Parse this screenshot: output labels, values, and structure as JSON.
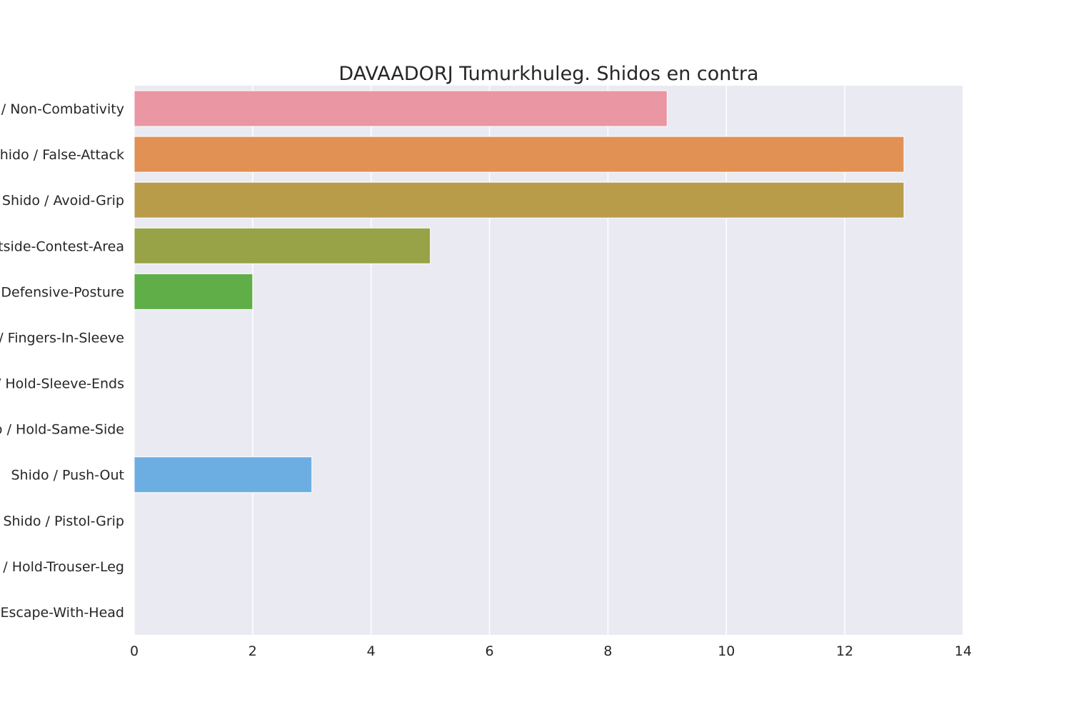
{
  "chart_data": {
    "type": "bar",
    "orientation": "horizontal",
    "title": "DAVAADORJ Tumurkhuleg. Shidos en contra",
    "xlabel": "",
    "ylabel": "",
    "xlim": [
      0,
      14
    ],
    "xticks": [
      "0",
      "2",
      "4",
      "6",
      "8",
      "10",
      "12",
      "14"
    ],
    "grid": true,
    "categories": [
      "Shido / Non-Combativity",
      "Shido / False-Attack",
      "Shido / Avoid-Grip",
      "Shido / Outside-Contest-Area",
      "Shido / Defensive-Posture",
      "Shido / Fingers-In-Sleeve",
      "Shido / Hold-Sleeve-Ends",
      "Shido / Hold-Same-Side",
      "Shido / Push-Out",
      "Shido / Pistol-Grip",
      "Shido / Hold-Trouser-Leg",
      "Shido / Escape-With-Head"
    ],
    "values": [
      9,
      13,
      13,
      5,
      2,
      0,
      0,
      0,
      3,
      0,
      0,
      0
    ],
    "colors": [
      "#ea96a3",
      "#e19153",
      "#b89c49",
      "#98a246",
      "#5fae47",
      "#53ab8a",
      "#56ada5",
      "#57aac0",
      "#6daee2",
      "#a99be9",
      "#e17fd6",
      "#e88db8"
    ],
    "background": "#eaeaf2"
  }
}
